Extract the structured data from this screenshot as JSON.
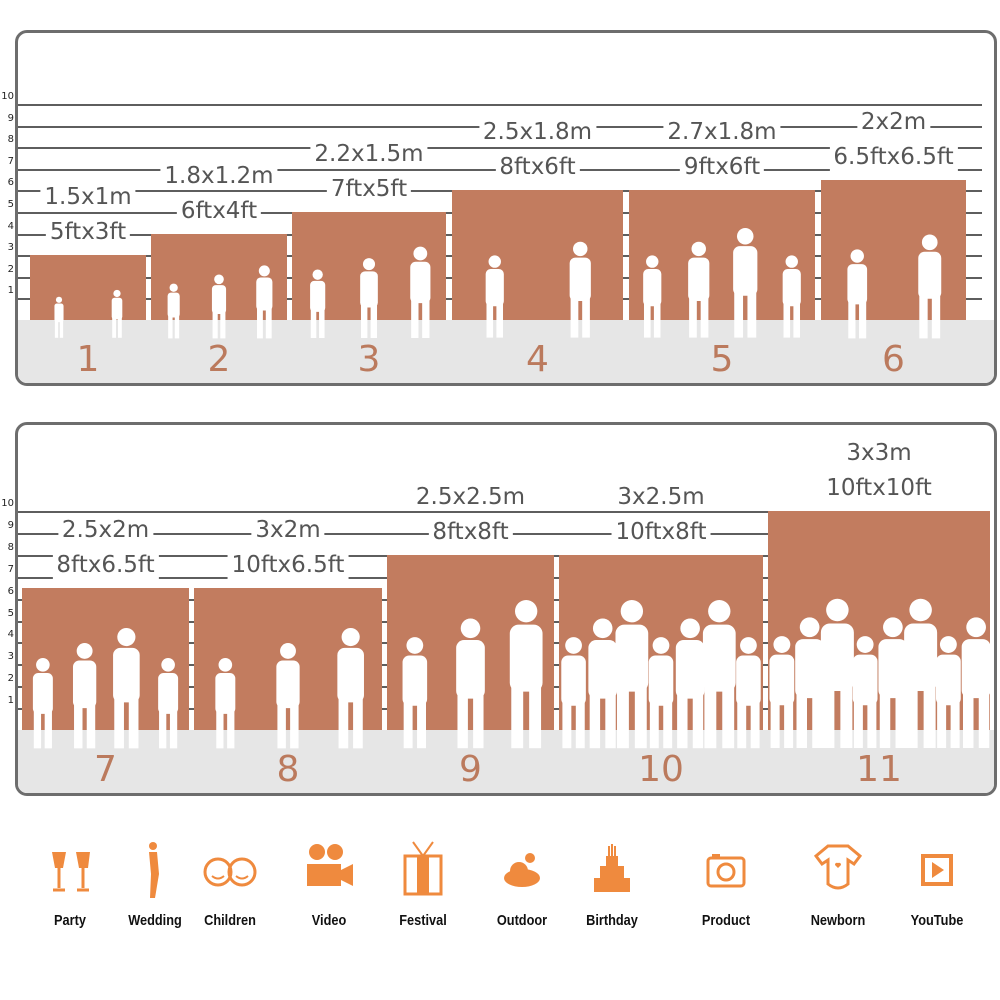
{
  "ruler_ticks": [
    "1",
    "2",
    "3",
    "4",
    "5",
    "6",
    "7",
    "8",
    "9",
    "10"
  ],
  "panels": [
    {
      "items": [
        {
          "number": "1",
          "metric": "1.5x1m",
          "imperial": "5ftx3ft",
          "height_ft": 3
        },
        {
          "number": "2",
          "metric": "1.8x1.2m",
          "imperial": "6ftx4ft",
          "height_ft": 4
        },
        {
          "number": "3",
          "metric": "2.2x1.5m",
          "imperial": "7ftx5ft",
          "height_ft": 5
        },
        {
          "number": "4",
          "metric": "2.5x1.8m",
          "imperial": "8ftx6ft",
          "height_ft": 6
        },
        {
          "number": "5",
          "metric": "2.7x1.8m",
          "imperial": "9ftx6ft",
          "height_ft": 6
        },
        {
          "number": "6",
          "metric": "2x2m",
          "imperial": "6.5ftx6.5ft",
          "height_ft": 6.5
        }
      ]
    },
    {
      "items": [
        {
          "number": "7",
          "metric": "2.5x2m",
          "imperial": "8ftx6.5ft",
          "height_ft": 6.5
        },
        {
          "number": "8",
          "metric": "3x2m",
          "imperial": "10ftx6.5ft",
          "height_ft": 6.5
        },
        {
          "number": "9",
          "metric": "2.5x2.5m",
          "imperial": "8ftx8ft",
          "height_ft": 8
        },
        {
          "number": "10",
          "metric": "3x2.5m",
          "imperial": "10ftx8ft",
          "height_ft": 8
        },
        {
          "number": "11",
          "metric": "3x3m",
          "imperial": "10ftx10ft",
          "height_ft": 10
        }
      ]
    }
  ],
  "colors": {
    "backdrop": "#c27c5f",
    "number": "#bb7a5d",
    "icon": "#ef8a3e",
    "floor": "#e6e6e6"
  },
  "uses": [
    {
      "label": "Party",
      "icon": "champagne-glasses-icon"
    },
    {
      "label": "Wedding",
      "icon": "wedding-couple-icon"
    },
    {
      "label": "Children",
      "icon": "children-faces-icon"
    },
    {
      "label": "Video",
      "icon": "movie-camera-icon"
    },
    {
      "label": "Festival",
      "icon": "gift-box-icon"
    },
    {
      "label": "Outdoor",
      "icon": "cloud-icon"
    },
    {
      "label": "Birthday",
      "icon": "birthday-cake-icon"
    },
    {
      "label": "Product",
      "icon": "camera-icon"
    },
    {
      "label": "Newborn",
      "icon": "baby-onesie-icon"
    },
    {
      "label": "YouTube",
      "icon": "play-button-icon"
    }
  ]
}
